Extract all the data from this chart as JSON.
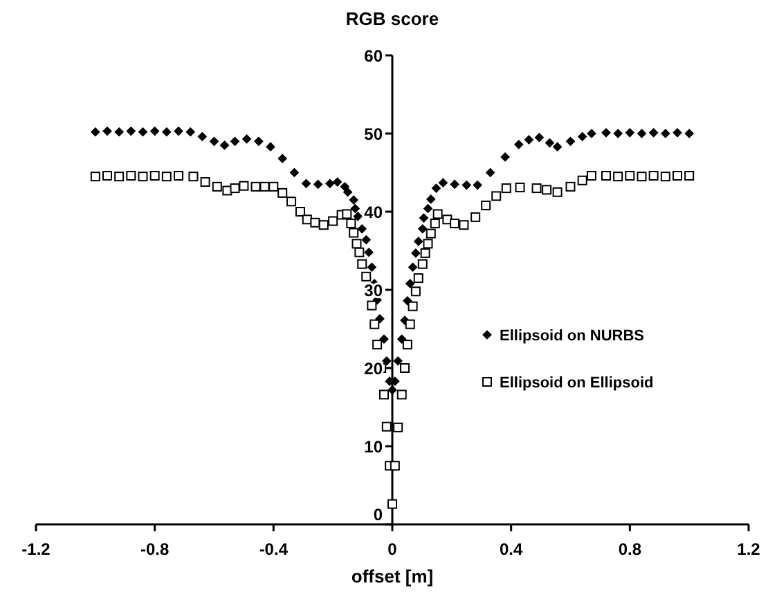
{
  "chart_data": {
    "type": "scatter",
    "ylabel": "RGB score",
    "xlabel": "offset [m]",
    "xlim": [
      -1.2,
      1.2
    ],
    "xticks": [
      -1.2,
      -0.8,
      -0.4,
      0,
      0.4,
      0.8,
      1.2
    ],
    "ylim": [
      0,
      60
    ],
    "yticks": [
      0,
      10,
      20,
      30,
      40,
      50,
      60
    ],
    "legend": "right",
    "series": [
      {
        "name": "Ellipsoid on NURBS",
        "color": "#000000",
        "marker": "diamond",
        "x": [
          -1.0,
          -0.96,
          -0.92,
          -0.88,
          -0.84,
          -0.8,
          -0.76,
          -0.72,
          -0.68,
          -0.64,
          -0.6,
          -0.565,
          -0.53,
          -0.49,
          -0.45,
          -0.41,
          -0.37,
          -0.33,
          -0.29,
          -0.25,
          -0.21,
          -0.185,
          -0.16,
          -0.15,
          -0.13,
          -0.125,
          -0.116,
          -0.102,
          -0.088,
          -0.079,
          -0.069,
          -0.06,
          -0.051,
          -0.042,
          -0.028,
          -0.019,
          -0.009,
          0,
          0.009,
          0.019,
          0.032,
          0.042,
          0.051,
          0.06,
          0.069,
          0.079,
          0.088,
          0.102,
          0.106,
          0.12,
          0.13,
          0.148,
          0.171,
          0.21,
          0.25,
          0.287,
          0.33,
          0.38,
          0.426,
          0.46,
          0.495,
          0.53,
          0.556,
          0.6,
          0.64,
          0.671,
          0.72,
          0.76,
          0.8,
          0.84,
          0.88,
          0.92,
          0.96,
          1.0
        ],
        "values": [
          50.2,
          50.3,
          50.2,
          50.3,
          50.2,
          50.3,
          50.2,
          50.3,
          50.2,
          49.6,
          49.0,
          48.5,
          49.0,
          49.3,
          49.0,
          48.3,
          46.8,
          45.0,
          43.6,
          43.5,
          43.6,
          43.8,
          43.2,
          42.5,
          41.5,
          40.4,
          39.4,
          37.8,
          36.4,
          34.8,
          32.9,
          30.8,
          28.7,
          26.3,
          23.7,
          20.9,
          18.3,
          17.2,
          18.3,
          20.9,
          23.7,
          26.1,
          28.6,
          30.8,
          32.9,
          34.7,
          36.2,
          37.8,
          39.2,
          40.4,
          41.6,
          43.0,
          43.7,
          43.5,
          43.4,
          43.4,
          45.0,
          47.0,
          48.6,
          49.2,
          49.5,
          48.8,
          48.3,
          49.0,
          49.6,
          50.0,
          50.1,
          50.0,
          50.1,
          50.0,
          50.1,
          50.0,
          50.1,
          50.0
        ]
      },
      {
        "name": "Ellipsoid on Ellipsoid",
        "color": "#000000",
        "marker": "square",
        "x": [
          -1.0,
          -0.96,
          -0.92,
          -0.88,
          -0.84,
          -0.8,
          -0.76,
          -0.72,
          -0.67,
          -0.63,
          -0.59,
          -0.556,
          -0.53,
          -0.5,
          -0.46,
          -0.43,
          -0.4,
          -0.37,
          -0.34,
          -0.31,
          -0.287,
          -0.26,
          -0.231,
          -0.2,
          -0.171,
          -0.153,
          -0.139,
          -0.13,
          -0.12,
          -0.111,
          -0.102,
          -0.088,
          -0.069,
          -0.06,
          -0.051,
          -0.037,
          -0.028,
          -0.019,
          -0.009,
          0,
          0.009,
          0.019,
          0.032,
          0.042,
          0.051,
          0.06,
          0.069,
          0.079,
          0.088,
          0.102,
          0.111,
          0.12,
          0.13,
          0.144,
          0.153,
          0.185,
          0.21,
          0.241,
          0.28,
          0.315,
          0.35,
          0.384,
          0.43,
          0.486,
          0.52,
          0.556,
          0.6,
          0.64,
          0.671,
          0.72,
          0.76,
          0.8,
          0.84,
          0.88,
          0.92,
          0.96,
          1.0
        ],
        "values": [
          44.5,
          44.6,
          44.5,
          44.6,
          44.5,
          44.6,
          44.5,
          44.6,
          44.5,
          43.8,
          43.2,
          42.7,
          43.0,
          43.3,
          43.2,
          43.2,
          43.2,
          42.4,
          41.3,
          40.0,
          39.0,
          38.6,
          38.3,
          38.8,
          39.6,
          39.7,
          38.5,
          37.3,
          35.9,
          34.8,
          33.3,
          31.7,
          28.0,
          25.6,
          23.0,
          20.0,
          16.6,
          12.5,
          7.5,
          2.6,
          7.5,
          12.4,
          16.6,
          20.0,
          23.0,
          25.6,
          27.9,
          29.8,
          31.5,
          33.3,
          34.7,
          35.9,
          37.2,
          38.5,
          39.7,
          39.0,
          38.5,
          38.3,
          39.3,
          40.8,
          42.0,
          43.0,
          43.1,
          43.0,
          42.8,
          42.5,
          43.2,
          44.0,
          44.6,
          44.6,
          44.5,
          44.6,
          44.5,
          44.6,
          44.5,
          44.6,
          44.6
        ]
      }
    ]
  }
}
